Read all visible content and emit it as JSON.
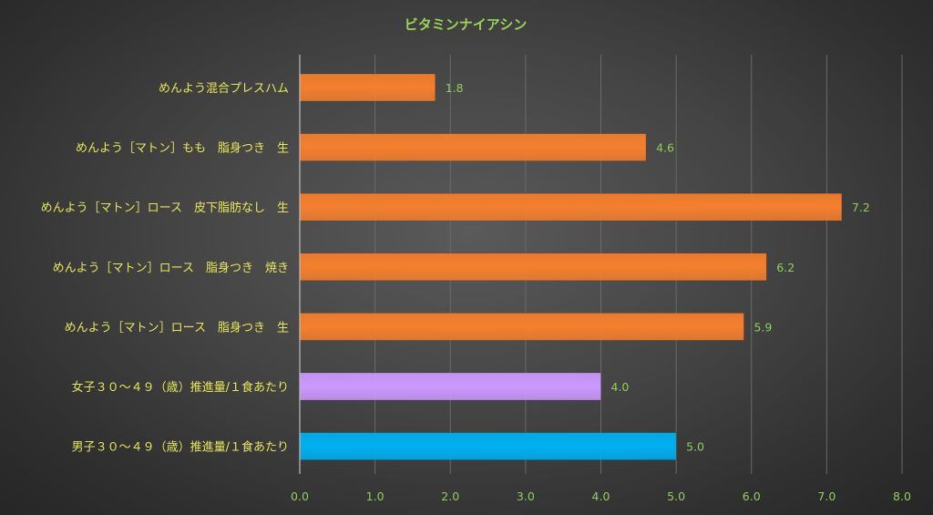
{
  "chart_data": {
    "type": "bar",
    "orientation": "horizontal",
    "title": "ビタミンナイアシン",
    "categories": [
      "めんよう混合プレスハム",
      "めんよう［マトン］もも　脂身つき　生",
      "めんよう［マトン］ロース　皮下脂肪なし　生",
      "めんよう［マトン］ロース　脂身つき　焼き",
      "めんよう［マトン］ロース　脂身つき　生",
      "女子３０～４９（歳）推進量/１食あたり",
      "男子３０～４９（歳）推進量/１食あたり"
    ],
    "values": [
      1.8,
      4.6,
      7.2,
      6.2,
      5.9,
      4.0,
      5.0
    ],
    "value_labels": [
      "1.8",
      "4.6",
      "7.2",
      "6.2",
      "5.9",
      "4.0",
      "5.0"
    ],
    "bar_colors": [
      "#f47f2e",
      "#f47f2e",
      "#f47f2e",
      "#f47f2e",
      "#f47f2e",
      "#cc99ff",
      "#00b0f0"
    ],
    "xlim": [
      0,
      8
    ],
    "x_ticks": [
      "0.0",
      "1.0",
      "2.0",
      "3.0",
      "4.0",
      "5.0",
      "6.0",
      "7.0",
      "8.0"
    ],
    "grid": true,
    "legend": "none",
    "xlabel": "",
    "ylabel": ""
  },
  "colors": {
    "title": "#9bd35a",
    "category_label": "#e8e65a",
    "tick_label": "#8fcf5a",
    "grid": "#6a6a6a"
  }
}
